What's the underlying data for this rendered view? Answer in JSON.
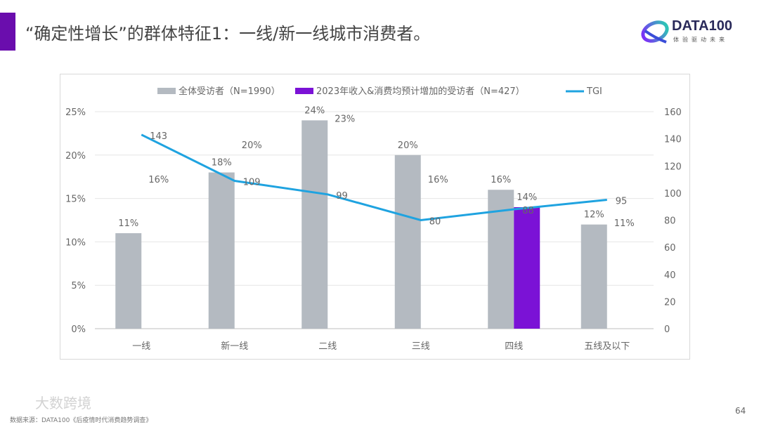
{
  "header": {
    "title": "“确定性增长”的群体特征1：一线/新一线城市消费者。",
    "logo_text": "DATA100",
    "logo_sub": "体验驱动未来"
  },
  "footer": {
    "source": "数据来源：DATA100《后疫情时代消费趋势调查》",
    "watermark": "大数跨境",
    "page_number": "64"
  },
  "chart_data": {
    "type": "bar",
    "categories": [
      "一线",
      "新一线",
      "二线",
      "三线",
      "四线",
      "五线及以下"
    ],
    "series": [
      {
        "name": "全体受访者（N=1990）",
        "type": "bar",
        "axis": "left",
        "color": "#b4bac1",
        "values": [
          11,
          18,
          24,
          20,
          16,
          12
        ],
        "labels": [
          "11%",
          "18%",
          "24%",
          "20%",
          "16%",
          "12%"
        ]
      },
      {
        "name": "2023年收入&消费均预计增加的受访者（N=427）",
        "type": "bar",
        "axis": "left",
        "color": "#7b12d6",
        "values": [
          16,
          20,
          23,
          16,
          14,
          11
        ],
        "labels": [
          "16%",
          "20%",
          "23%",
          "16%",
          "14%",
          "11%"
        ],
        "visible_bars": [
          false,
          false,
          false,
          false,
          true,
          false
        ]
      },
      {
        "name": "TGI",
        "type": "line",
        "axis": "right",
        "color": "#1fa3e0",
        "values": [
          143,
          109,
          99,
          80,
          88,
          95
        ],
        "labels": [
          "143",
          "109",
          "99",
          "80",
          "88",
          "95"
        ]
      }
    ],
    "left_axis": {
      "ylim": [
        0,
        25
      ],
      "ticks": [
        "0%",
        "5%",
        "10%",
        "15%",
        "20%",
        "25%"
      ]
    },
    "right_axis": {
      "ylim": [
        0,
        160
      ],
      "ticks": [
        "0",
        "20",
        "40",
        "60",
        "80",
        "100",
        "120",
        "140",
        "160"
      ]
    },
    "grid": true,
    "legend": "top"
  }
}
